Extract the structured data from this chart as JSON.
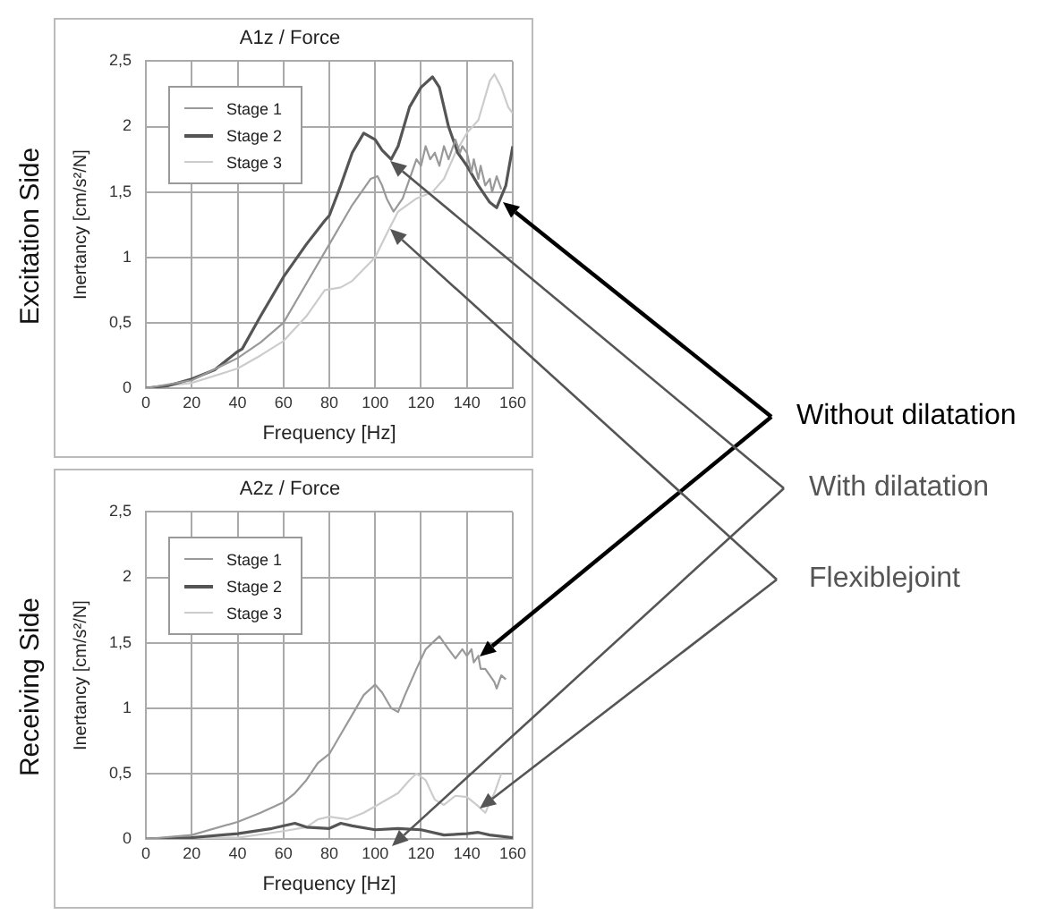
{
  "chart_data": [
    {
      "type": "line",
      "title": "A1z / Force",
      "xlabel": "Frequency [Hz]",
      "ylabel": "Inertancy [cm/s²/N]",
      "annotations": [
        "Excitation Side",
        "Without dilatation",
        "With dilatation",
        "Flexiblejoint"
      ],
      "xlim": [
        0,
        160
      ],
      "xticks": [
        0,
        20,
        40,
        60,
        80,
        100,
        120,
        140,
        160
      ],
      "ylim": [
        0,
        2.5
      ],
      "yticks": [
        0,
        {
          "value": 0.5,
          "label": "0,5"
        },
        1,
        {
          "value": 1.5,
          "label": "1,5"
        },
        2,
        {
          "value": 2.5,
          "label": "2,5"
        }
      ],
      "grid": true,
      "legend": "top left",
      "marker": "none",
      "series": [
        {
          "name": "Stage 1",
          "color": "#999999",
          "x": [
            0,
            20,
            40,
            50,
            60,
            70,
            80,
            90,
            98,
            101,
            103,
            105,
            108,
            112,
            115,
            118,
            120,
            122,
            124,
            126,
            128,
            130,
            132,
            135,
            137,
            138,
            140,
            142,
            143,
            145,
            146,
            148,
            150,
            151,
            153,
            155
          ],
          "values": [
            0,
            0.06,
            0.23,
            0.35,
            0.5,
            0.8,
            1.1,
            1.4,
            1.6,
            1.62,
            1.55,
            1.45,
            1.35,
            1.45,
            1.6,
            1.75,
            1.7,
            1.85,
            1.75,
            1.8,
            1.7,
            1.85,
            1.75,
            1.9,
            1.8,
            1.85,
            1.8,
            1.65,
            1.75,
            1.6,
            1.7,
            1.55,
            1.6,
            1.5,
            1.62,
            1.52
          ]
        },
        {
          "name": "Stage 2",
          "color": "#555555",
          "x": [
            0,
            10,
            20,
            30,
            40,
            42,
            50,
            60,
            70,
            78,
            80,
            85,
            90,
            95,
            100,
            103,
            107,
            110,
            115,
            120,
            125,
            128,
            132,
            136,
            140,
            145,
            150,
            153,
            157,
            160
          ],
          "values": [
            0,
            0.02,
            0.07,
            0.14,
            0.28,
            0.3,
            0.55,
            0.85,
            1.1,
            1.28,
            1.32,
            1.55,
            1.8,
            1.95,
            1.9,
            1.82,
            1.75,
            1.85,
            2.15,
            2.3,
            2.38,
            2.3,
            2,
            1.8,
            1.7,
            1.55,
            1.42,
            1.38,
            1.55,
            1.85
          ]
        },
        {
          "name": "Stage 3",
          "color": "#cccccc",
          "x": [
            0,
            20,
            40,
            50,
            60,
            70,
            78,
            85,
            90,
            100,
            105,
            110,
            118,
            125,
            130,
            135,
            140,
            145,
            150,
            152,
            155,
            158,
            160
          ],
          "values": [
            0,
            0.04,
            0.15,
            0.25,
            0.36,
            0.55,
            0.75,
            0.77,
            0.82,
            1,
            1.18,
            1.35,
            1.45,
            1.5,
            1.6,
            1.8,
            1.95,
            2.05,
            2.35,
            2.4,
            2.3,
            2.15,
            2.1
          ]
        }
      ]
    },
    {
      "type": "line",
      "title": "A2z / Force",
      "xlabel": "Frequency [Hz]",
      "ylabel": "Inertancy [cm/s²/N]",
      "annotations": [
        "Receiving Side"
      ],
      "xlim": [
        0,
        160
      ],
      "xticks": [
        0,
        20,
        40,
        60,
        80,
        100,
        120,
        140,
        160
      ],
      "ylim": [
        0,
        2.5
      ],
      "yticks": [
        0,
        {
          "value": 0.5,
          "label": "0,5"
        },
        1,
        {
          "value": 1.5,
          "label": "1,5"
        },
        2,
        {
          "value": 2.5,
          "label": "2,5"
        }
      ],
      "grid": true,
      "legend": "top left",
      "marker": "none",
      "series": [
        {
          "name": "Stage 1",
          "color": "#999999",
          "x": [
            0,
            20,
            40,
            50,
            60,
            65,
            70,
            75,
            80,
            85,
            90,
            95,
            100,
            103,
            107,
            110,
            113,
            118,
            122,
            125,
            128,
            132,
            135,
            138,
            140,
            142,
            143,
            145,
            146,
            148,
            150,
            152,
            153,
            155,
            157
          ],
          "values": [
            0,
            0.03,
            0.13,
            0.2,
            0.28,
            0.35,
            0.45,
            0.58,
            0.65,
            0.8,
            0.95,
            1.1,
            1.18,
            1.12,
            1,
            0.97,
            1.1,
            1.3,
            1.45,
            1.5,
            1.55,
            1.45,
            1.38,
            1.45,
            1.4,
            1.45,
            1.35,
            1.4,
            1.3,
            1.3,
            1.25,
            1.2,
            1.15,
            1.25,
            1.22
          ]
        },
        {
          "name": "Stage 2",
          "color": "#555555",
          "x": [
            0,
            20,
            40,
            55,
            65,
            70,
            80,
            85,
            90,
            100,
            110,
            120,
            130,
            140,
            145,
            150,
            160
          ],
          "values": [
            0,
            0.01,
            0.04,
            0.08,
            0.12,
            0.09,
            0.08,
            0.12,
            0.1,
            0.07,
            0.08,
            0.07,
            0.03,
            0.04,
            0.05,
            0.03,
            0.01
          ]
        },
        {
          "name": "Stage 3",
          "color": "#cccccc",
          "x": [
            0,
            40,
            60,
            70,
            75,
            80,
            88,
            95,
            100,
            110,
            115,
            118,
            122,
            126,
            130,
            135,
            140,
            145,
            148,
            152,
            155
          ],
          "values": [
            0,
            0.01,
            0.06,
            0.09,
            0.15,
            0.17,
            0.15,
            0.2,
            0.25,
            0.35,
            0.45,
            0.5,
            0.45,
            0.3,
            0.26,
            0.33,
            0.32,
            0.25,
            0.2,
            0.35,
            0.5
          ]
        }
      ]
    }
  ]
}
